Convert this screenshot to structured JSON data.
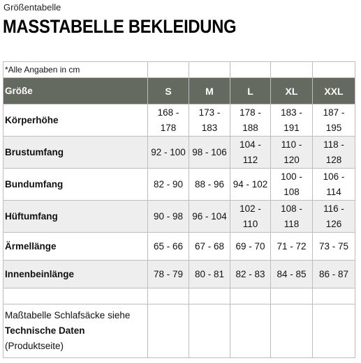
{
  "header": {
    "subtitle": "Größentabelle",
    "title": "MASSTABELLE BEKLEIDUNG"
  },
  "table": {
    "note": "*Alle Angaben in cm",
    "label_header": "Größe",
    "sizes": [
      "S",
      "M",
      "L",
      "XL",
      "XXL"
    ],
    "rows": [
      {
        "label": "Körperhöhe",
        "values": [
          [
            "168 -",
            "178"
          ],
          [
            "173 -",
            "183"
          ],
          [
            "178 -",
            "188"
          ],
          [
            "183 -",
            "191"
          ],
          [
            "187 -",
            "195"
          ]
        ]
      },
      {
        "label": "Brustumfang",
        "values": [
          [
            "92 - 100"
          ],
          [
            "98 - 106"
          ],
          [
            "104 -",
            "112"
          ],
          [
            "110 -",
            "120"
          ],
          [
            "118 -",
            "128"
          ]
        ]
      },
      {
        "label": "Bundumfang",
        "values": [
          [
            "82 - 90"
          ],
          [
            "88 - 96"
          ],
          [
            "94 - 102"
          ],
          [
            "100 -",
            "108"
          ],
          [
            "106 -",
            "114"
          ]
        ]
      },
      {
        "label": "Hüftumfang",
        "values": [
          [
            "90 - 98"
          ],
          [
            "96 - 104"
          ],
          [
            "102 -",
            "110"
          ],
          [
            "108 -",
            "118"
          ],
          [
            "116 -",
            "126"
          ]
        ]
      },
      {
        "label": "Ärmellänge",
        "values": [
          [
            "65 - 66"
          ],
          [
            "67 - 68"
          ],
          [
            "69 - 70"
          ],
          [
            "71 - 72"
          ],
          [
            "73 - 75"
          ]
        ]
      },
      {
        "label": "Innenbeinlänge",
        "values": [
          [
            "78 - 79"
          ],
          [
            "80 - 81"
          ],
          [
            "82 - 83"
          ],
          [
            "84 - 85"
          ],
          [
            "86 - 87"
          ]
        ]
      }
    ],
    "footer": {
      "line1": "Maßtabelle Schlafsäcke siehe",
      "line2": "Technische Daten",
      "line3": "(Produktseite)"
    }
  }
}
